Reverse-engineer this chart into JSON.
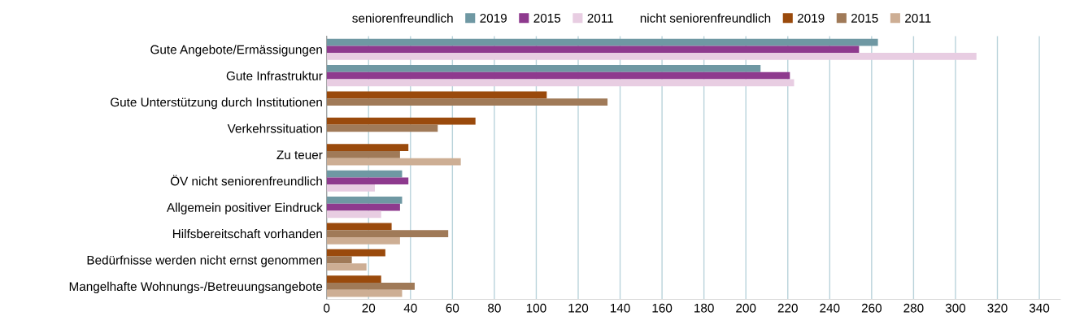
{
  "chart_data": {
    "type": "bar",
    "orientation": "horizontal",
    "categories": [
      "Gute Angebote/Ermässigungen",
      "Gute Infrastruktur",
      "Gute Unterstützung durch Institutionen",
      "Verkehrssituation",
      "Zu teuer",
      "ÖV nicht seniorenfreundlich",
      "Allgemein positiver Eindruck",
      "Hilfsbereitschaft vorhanden",
      "Bedürfnisse werden nicht ernst genommen",
      "Mangelhafte Wohnungs-/Betreuungsangebote"
    ],
    "series": [
      {
        "name": "2019",
        "color": "#6f98a3",
        "values": [
          263,
          207,
          null,
          null,
          null,
          36,
          36,
          null,
          null,
          null
        ]
      },
      {
        "name": "2015",
        "color": "#8e3a8e",
        "values": [
          254,
          221,
          null,
          null,
          null,
          39,
          35,
          null,
          null,
          null
        ]
      },
      {
        "name": "2011",
        "color": "#e8cde2",
        "values": [
          310,
          223,
          null,
          null,
          null,
          23,
          26,
          null,
          null,
          null
        ]
      },
      {
        "name": "2019",
        "color": "#9a4a0c",
        "values": [
          null,
          null,
          105,
          71,
          39,
          null,
          null,
          31,
          28,
          26
        ]
      },
      {
        "name": "2015",
        "color": "#a07a58",
        "values": [
          null,
          null,
          134,
          53,
          35,
          null,
          null,
          58,
          12,
          42
        ]
      },
      {
        "name": "2011",
        "color": "#cdae94",
        "values": [
          null,
          null,
          null,
          null,
          64,
          null,
          null,
          35,
          19,
          36
        ]
      }
    ],
    "annotations": [
      "seniorenfreundlich",
      "nicht seniorenfreundlich"
    ],
    "xlim": [
      0,
      350
    ],
    "xticks": [
      0,
      20,
      40,
      60,
      80,
      100,
      120,
      140,
      160,
      180,
      200,
      220,
      240,
      260,
      280,
      300,
      320,
      340
    ],
    "grid": "x",
    "legend": "top"
  }
}
